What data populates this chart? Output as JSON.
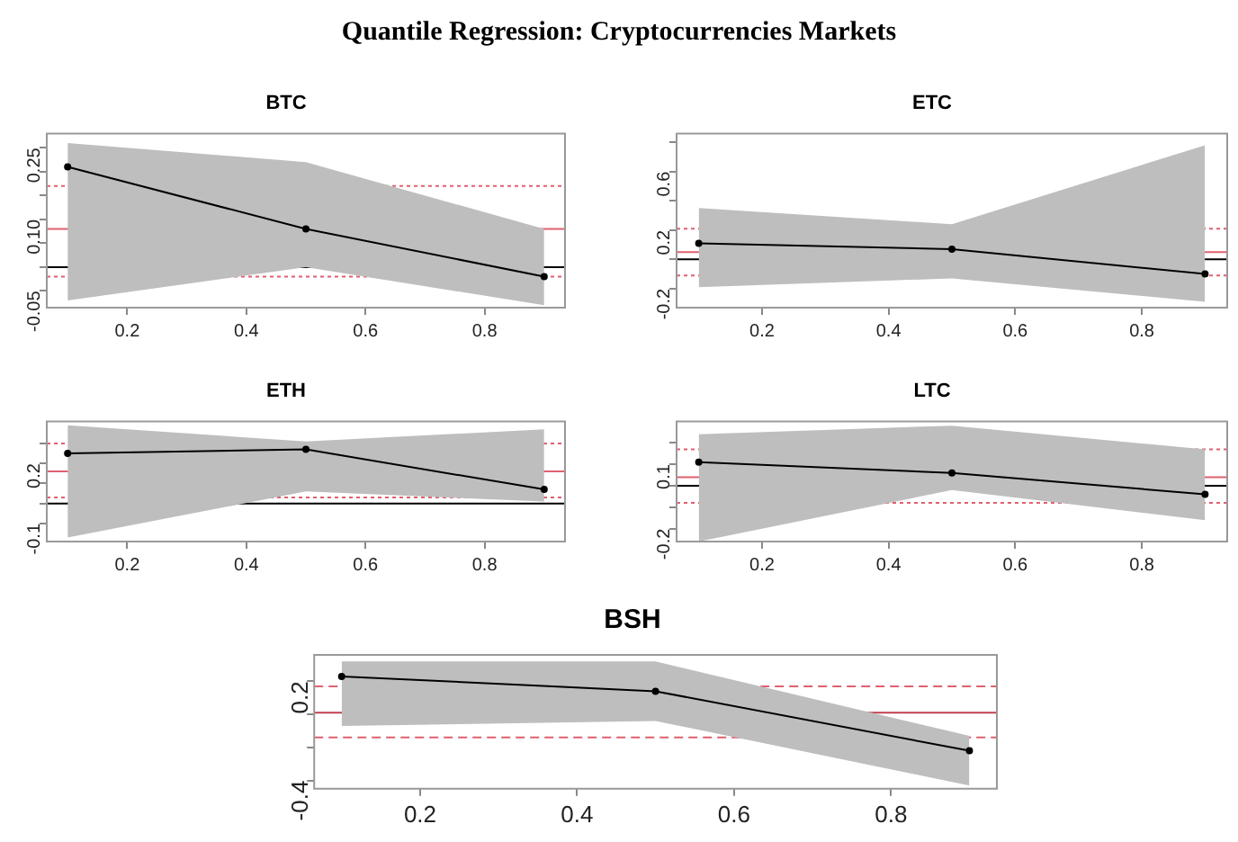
{
  "chart_data": [
    {
      "type": "other",
      "title": "Quantile Regression: Cryptocurrencies Markets"
    },
    {
      "type": "line",
      "title": "BTC",
      "xlim": [
        0.065,
        0.935
      ],
      "xticks": [
        0.2,
        0.4,
        0.6,
        0.8
      ],
      "ylim": [
        -0.085,
        0.28
      ],
      "yticks": [
        {
          "value": -0.05,
          "label": "-0.05"
        },
        {
          "value": 0,
          "label": null
        },
        {
          "value": 0.05,
          "label": null
        },
        {
          "value": 0.1,
          "label": "0.10"
        },
        {
          "value": 0.15,
          "label": null
        },
        {
          "value": 0.2,
          "label": null
        },
        {
          "value": 0.25,
          "label": "0.25"
        }
      ],
      "grid": false,
      "legend": false,
      "marker": "circle",
      "line_style": "solid",
      "series": [
        {
          "color": "#000000",
          "x": [
            0.1,
            0.5,
            0.9
          ],
          "values": [
            0.21,
            0.08,
            -0.02
          ],
          "lower": [
            -0.07,
            0.0,
            -0.08
          ],
          "upper": [
            0.26,
            0.22,
            0.08
          ]
        }
      ],
      "ref_lines": [
        {
          "axis": "y",
          "value": 0,
          "color": "#000000",
          "line_style": "solid"
        },
        {
          "axis": "y",
          "value": 0.08,
          "color": "#e06070",
          "line_style": "solid"
        },
        {
          "axis": "y",
          "value": 0.17,
          "color": "#e06070",
          "line_style": "dotted"
        },
        {
          "axis": "y",
          "value": -0.02,
          "color": "#e06070",
          "line_style": "dotted"
        }
      ]
    },
    {
      "type": "line",
      "title": "ETC",
      "xlim": [
        0.065,
        0.935
      ],
      "xticks": [
        0.2,
        0.4,
        0.6,
        0.8
      ],
      "ylim": [
        -0.33,
        0.86
      ],
      "yticks": [
        {
          "value": -0.2,
          "label": "-0.2"
        },
        {
          "value": 0,
          "label": null
        },
        {
          "value": 0.2,
          "label": "0.2"
        },
        {
          "value": 0.4,
          "label": null
        },
        {
          "value": 0.6,
          "label": "0.6"
        },
        {
          "value": 0.8,
          "label": null
        }
      ],
      "grid": false,
      "legend": false,
      "marker": "circle",
      "line_style": "solid",
      "series": [
        {
          "color": "#000000",
          "x": [
            0.1,
            0.5,
            0.9
          ],
          "values": [
            0.11,
            0.07,
            -0.1
          ],
          "lower": [
            -0.19,
            -0.13,
            -0.29
          ],
          "upper": [
            0.35,
            0.24,
            0.78
          ]
        }
      ],
      "ref_lines": [
        {
          "axis": "y",
          "value": 0,
          "color": "#000000",
          "line_style": "solid"
        },
        {
          "axis": "y",
          "value": 0.05,
          "color": "#e06070",
          "line_style": "solid"
        },
        {
          "axis": "y",
          "value": 0.21,
          "color": "#e06070",
          "line_style": "dotted"
        },
        {
          "axis": "y",
          "value": -0.11,
          "color": "#e06070",
          "line_style": "dotted"
        }
      ]
    },
    {
      "type": "line",
      "title": "ETH",
      "xlim": [
        0.065,
        0.935
      ],
      "xticks": [
        0.2,
        0.4,
        0.6,
        0.8
      ],
      "ylim": [
        -0.19,
        0.41
      ],
      "yticks": [
        {
          "value": -0.1,
          "label": "-0.1"
        },
        {
          "value": 0,
          "label": null
        },
        {
          "value": 0.1,
          "label": null
        },
        {
          "value": 0.2,
          "label": "0.2"
        },
        {
          "value": 0.3,
          "label": null
        }
      ],
      "grid": false,
      "legend": false,
      "marker": "circle",
      "line_style": "solid",
      "series": [
        {
          "color": "#000000",
          "x": [
            0.1,
            0.5,
            0.9
          ],
          "values": [
            0.25,
            0.27,
            0.07
          ],
          "lower": [
            -0.17,
            0.06,
            0.01
          ],
          "upper": [
            0.39,
            0.31,
            0.37
          ]
        }
      ],
      "ref_lines": [
        {
          "axis": "y",
          "value": 0,
          "color": "#000000",
          "line_style": "solid"
        },
        {
          "axis": "y",
          "value": 0.16,
          "color": "#e06070",
          "line_style": "solid"
        },
        {
          "axis": "y",
          "value": 0.3,
          "color": "#e06070",
          "line_style": "dotted"
        },
        {
          "axis": "y",
          "value": 0.03,
          "color": "#e06070",
          "line_style": "dotted"
        }
      ]
    },
    {
      "type": "line",
      "title": "LTC",
      "xlim": [
        0.065,
        0.935
      ],
      "xticks": [
        0.2,
        0.4,
        0.6,
        0.8
      ],
      "ylim": [
        -0.26,
        0.3
      ],
      "yticks": [
        {
          "value": -0.2,
          "label": "-0.2"
        },
        {
          "value": -0.1,
          "label": null
        },
        {
          "value": 0,
          "label": null
        },
        {
          "value": 0.1,
          "label": "0.1"
        },
        {
          "value": 0.2,
          "label": null
        }
      ],
      "grid": false,
      "legend": false,
      "marker": "circle",
      "line_style": "solid",
      "series": [
        {
          "color": "#000000",
          "x": [
            0.1,
            0.5,
            0.9
          ],
          "values": [
            0.11,
            0.06,
            -0.04
          ],
          "lower": [
            -0.26,
            -0.02,
            -0.16
          ],
          "upper": [
            0.24,
            0.28,
            0.17
          ]
        }
      ],
      "ref_lines": [
        {
          "axis": "y",
          "value": 0,
          "color": "#000000",
          "line_style": "solid"
        },
        {
          "axis": "y",
          "value": 0.04,
          "color": "#e06070",
          "line_style": "solid"
        },
        {
          "axis": "y",
          "value": 0.17,
          "color": "#e06070",
          "line_style": "dotted"
        },
        {
          "axis": "y",
          "value": -0.08,
          "color": "#e06070",
          "line_style": "dotted"
        }
      ]
    },
    {
      "type": "line",
      "title": "BSH",
      "xlim": [
        0.065,
        0.935
      ],
      "xticks": [
        0.2,
        0.4,
        0.6,
        0.8
      ],
      "ylim": [
        -0.45,
        0.36
      ],
      "yticks": [
        {
          "value": -0.4,
          "label": "-0.4"
        },
        {
          "value": -0.2,
          "label": null
        },
        {
          "value": 0,
          "label": null
        },
        {
          "value": 0.2,
          "label": "0.2"
        }
      ],
      "grid": false,
      "legend": false,
      "marker": "circle",
      "line_style": "solid",
      "series": [
        {
          "color": "#000000",
          "x": [
            0.1,
            0.5,
            0.9
          ],
          "values": [
            0.23,
            0.14,
            -0.22
          ],
          "lower": [
            -0.07,
            -0.04,
            -0.43
          ],
          "upper": [
            0.32,
            0.32,
            -0.13
          ]
        }
      ],
      "ref_lines": [
        {
          "axis": "y",
          "value": 0.01,
          "color": "#c04050",
          "line_style": "solid"
        },
        {
          "axis": "y",
          "value": 0.17,
          "color": "#e06070",
          "line_style": "dashed"
        },
        {
          "axis": "y",
          "value": -0.14,
          "color": "#e06070",
          "line_style": "dashed"
        }
      ]
    }
  ]
}
